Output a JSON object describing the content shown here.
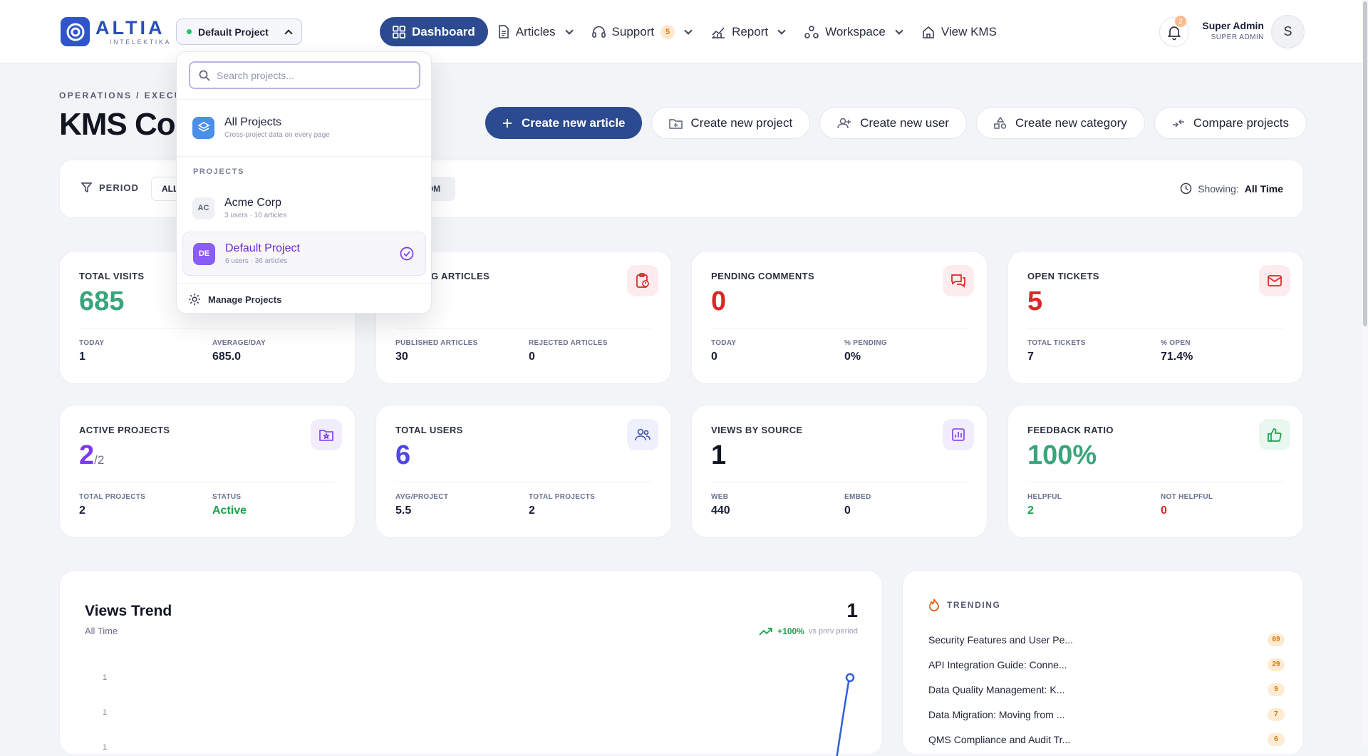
{
  "brand": {
    "name": "ALTIA",
    "sub": "INTELEKTIKA"
  },
  "project_switch": {
    "label": "Default Project"
  },
  "nav": {
    "dashboard": "Dashboard",
    "articles": "Articles",
    "support": "Support",
    "support_badge": "5",
    "report": "Report",
    "workspace": "Workspace",
    "view_kms": "View KMS"
  },
  "notifications": {
    "count": "2"
  },
  "user": {
    "name": "Super Admin",
    "role": "SUPER ADMIN",
    "initial": "S"
  },
  "page": {
    "breadcrumb": "OPERATIONS  /  EXECU",
    "title": "KMS Cor"
  },
  "actions": {
    "create_article": "Create new article",
    "create_project": "Create new project",
    "create_user": "Create new user",
    "create_category": "Create new category",
    "compare_projects": "Compare projects"
  },
  "filter": {
    "period_label": "PERIOD",
    "all": "ALL",
    "custom": "OM",
    "showing_label": "Showing:",
    "showing_value": "All Time"
  },
  "colors": {
    "primary": "#2b4a8f",
    "green": "#16a34a",
    "red": "#dc2626",
    "purple": "#7c3aed",
    "teal": "#3aa57a"
  },
  "kpis": {
    "total_visits": {
      "title": "TOTAL VISITS",
      "value": "685",
      "sub1_label": "TODAY",
      "sub1_value": "1",
      "sub2_label": "AVERAGE/DAY",
      "sub2_value": "685.0"
    },
    "articles": {
      "title": "G ARTICLES",
      "sub1_label": "PUBLISHED ARTICLES",
      "sub1_value": "30",
      "sub2_label": "REJECTED ARTICLES",
      "sub2_value": "0"
    },
    "pending_comments": {
      "title": "PENDING COMMENTS",
      "value": "0",
      "sub1_label": "TODAY",
      "sub1_value": "0",
      "sub2_label": "% PENDING",
      "sub2_value": "0%"
    },
    "open_tickets": {
      "title": "OPEN TICKETS",
      "value": "5",
      "sub1_label": "TOTAL TICKETS",
      "sub1_value": "7",
      "sub2_label": "% OPEN",
      "sub2_value": "71.4%"
    },
    "active_projects": {
      "title": "ACTIVE PROJECTS",
      "value": "2",
      "value_suffix": "/2",
      "sub1_label": "TOTAL PROJECTS",
      "sub1_value": "2",
      "sub2_label": "STATUS",
      "sub2_value": "Active"
    },
    "total_users": {
      "title": "TOTAL USERS",
      "value": "6",
      "sub1_label": "AVG/PROJECT",
      "sub1_value": "5.5",
      "sub2_label": "TOTAL PROJECTS",
      "sub2_value": "2"
    },
    "views_by_source": {
      "title": "VIEWS BY SOURCE",
      "value": "1",
      "sub1_label": "WEB",
      "sub1_value": "440",
      "sub2_label": "EMBED",
      "sub2_value": "0"
    },
    "feedback_ratio": {
      "title": "FEEDBACK RATIO",
      "value": "100%",
      "sub1_label": "HELPFUL",
      "sub1_value": "2",
      "sub2_label": "NOT HELPFUL",
      "sub2_value": "0"
    }
  },
  "trend": {
    "title": "Views Trend",
    "subtitle": "All Time",
    "value": "1",
    "delta": "+100%",
    "delta_compare": "vs prev period",
    "y_ticks": [
      "1",
      "1",
      "1"
    ]
  },
  "trending": {
    "label": "TRENDING",
    "items": [
      {
        "title": "Security Features and User Pe...",
        "count": "69"
      },
      {
        "title": "API Integration Guide: Conne...",
        "count": "29"
      },
      {
        "title": "Data Quality Management: K...",
        "count": "9"
      },
      {
        "title": "Data Migration: Moving from ...",
        "count": "7"
      },
      {
        "title": "QMS Compliance and Audit Tr...",
        "count": "6"
      }
    ]
  },
  "dropdown": {
    "search_placeholder": "Search projects...",
    "all_projects": {
      "name": "All Projects",
      "meta": "Cross-project data on every page"
    },
    "section_label": "PROJECTS",
    "projects": [
      {
        "initials": "AC",
        "name": "Acme Corp",
        "meta": "3 users · 10 articles"
      },
      {
        "initials": "DE",
        "name": "Default Project",
        "meta": "6 users · 36 articles"
      }
    ],
    "manage": "Manage Projects"
  }
}
